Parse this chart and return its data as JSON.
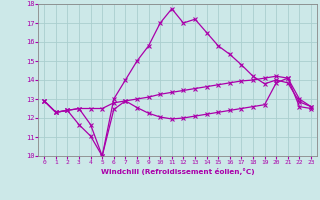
{
  "xlabel": "Windchill (Refroidissement éolien,°C)",
  "bg_color": "#cce8e8",
  "line_color": "#aa00aa",
  "xlim": [
    -0.5,
    23.5
  ],
  "ylim": [
    10,
    18
  ],
  "xticks": [
    0,
    1,
    2,
    3,
    4,
    5,
    6,
    7,
    8,
    9,
    10,
    11,
    12,
    13,
    14,
    15,
    16,
    17,
    18,
    19,
    20,
    21,
    22,
    23
  ],
  "yticks": [
    10,
    11,
    12,
    13,
    14,
    15,
    16,
    17,
    18
  ],
  "grid_color": "#aacece",
  "line_hump_x": [
    0,
    1,
    2,
    3,
    4,
    5,
    6,
    7,
    8,
    9,
    10,
    11,
    12,
    13,
    14,
    15,
    16,
    17,
    18,
    19,
    20,
    21,
    22,
    23
  ],
  "line_hump_y": [
    12.9,
    12.3,
    12.4,
    12.5,
    11.65,
    10.0,
    13.0,
    14.0,
    15.0,
    15.8,
    17.0,
    17.75,
    17.0,
    17.2,
    16.5,
    15.8,
    15.35,
    14.8,
    14.2,
    13.8,
    14.0,
    13.85,
    12.85,
    12.6
  ],
  "line_mid_x": [
    0,
    1,
    2,
    3,
    4,
    5,
    6,
    7,
    8,
    9,
    10,
    11,
    12,
    13,
    14,
    15,
    16,
    17,
    18,
    19,
    20,
    21,
    22,
    23
  ],
  "line_mid_y": [
    12.9,
    12.3,
    12.4,
    12.5,
    12.5,
    12.5,
    12.8,
    12.9,
    13.0,
    13.1,
    13.25,
    13.35,
    13.45,
    13.55,
    13.65,
    13.75,
    13.85,
    13.95,
    14.0,
    14.1,
    14.2,
    14.1,
    13.0,
    12.6
  ],
  "line_bot_x": [
    0,
    1,
    2,
    3,
    4,
    5,
    6,
    7,
    8,
    9,
    10,
    11,
    12,
    13,
    14,
    15,
    16,
    17,
    18,
    19,
    20,
    21,
    22,
    23
  ],
  "line_bot_y": [
    12.9,
    12.3,
    12.4,
    11.65,
    11.05,
    10.0,
    12.45,
    12.9,
    12.55,
    12.25,
    12.05,
    11.95,
    12.0,
    12.1,
    12.2,
    12.3,
    12.4,
    12.5,
    12.6,
    12.7,
    13.85,
    14.1,
    12.6,
    12.5
  ]
}
